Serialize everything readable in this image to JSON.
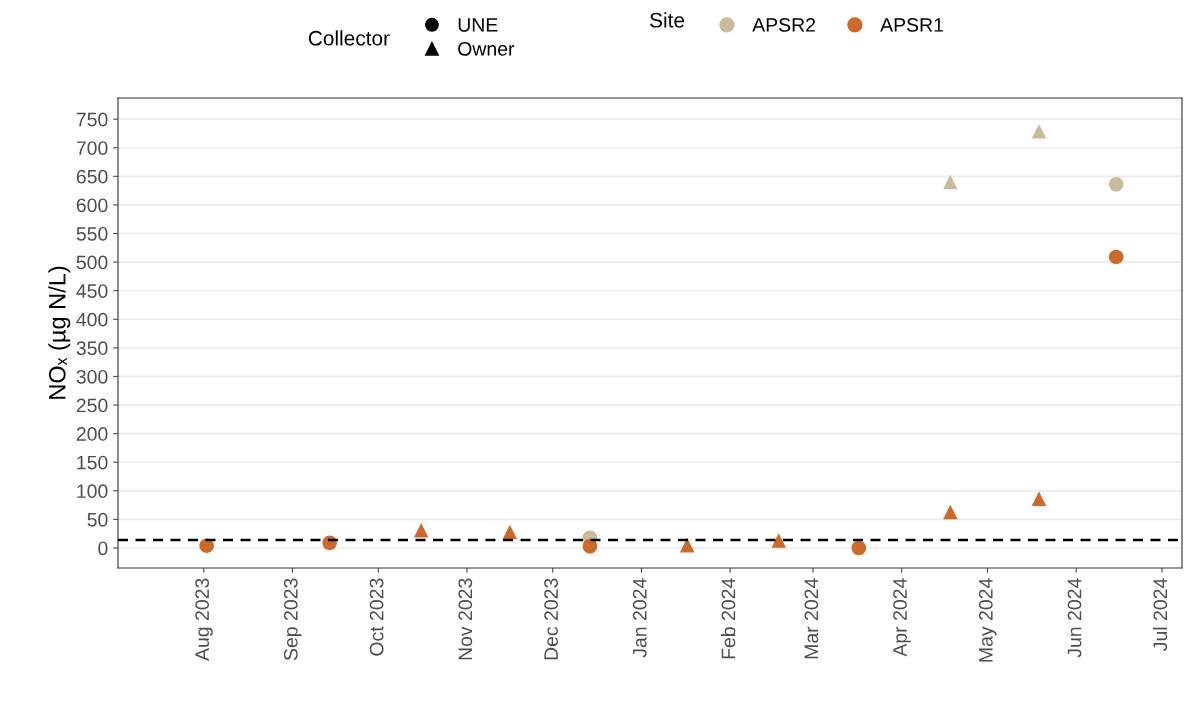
{
  "chart_data": {
    "type": "scatter",
    "ylabel": "NOₓ (µg N/L)",
    "legend_title": "Site",
    "legend": "top",
    "annotations": [
      "Collector",
      "UNE",
      "Owner"
    ],
    "series": [
      {
        "name": "APSR2",
        "color": "#c8bb9b",
        "marker": "circle",
        "x": [
          "2023-12-14",
          "2024-06-15"
        ],
        "values": [
          18,
          636
        ]
      },
      {
        "color": "#c8bb9b",
        "marker": "triangle",
        "x": [
          "2024-04-18",
          "2024-05-19"
        ],
        "values": [
          640,
          729
        ]
      },
      {
        "name": "APSR1",
        "color": "#cc6a2c",
        "marker": "circle",
        "x": [
          "2023-08-02",
          "2023-09-14",
          "2023-12-14",
          "2024-03-17",
          "2024-06-15"
        ],
        "values": [
          4,
          9,
          3,
          0,
          509
        ]
      },
      {
        "color": "#cc6a2c",
        "marker": "triangle",
        "x": [
          "2023-10-16",
          "2023-11-16",
          "2024-01-17",
          "2024-02-18",
          "2024-04-18",
          "2024-05-19"
        ],
        "values": [
          31,
          28,
          5,
          13,
          63,
          86
        ]
      }
    ],
    "xlim": [
      "2023-07-02",
      "2024-07-08"
    ],
    "ylim": [
      -35,
      787
    ],
    "xticks": [
      {
        "value": "2023-08-01",
        "label": "Aug 2023"
      },
      {
        "value": "2023-09-01",
        "label": "Sep 2023"
      },
      {
        "value": "2023-10-01",
        "label": "Oct 2023"
      },
      {
        "value": "2023-11-01",
        "label": "Nov 2023"
      },
      {
        "value": "2023-12-01",
        "label": "Dec 2023"
      },
      {
        "value": "2024-01-01",
        "label": "Jan 2024"
      },
      {
        "value": "2024-02-01",
        "label": "Feb 2024"
      },
      {
        "value": "2024-03-01",
        "label": "Mar 2024"
      },
      {
        "value": "2024-04-01",
        "label": "Apr 2024"
      },
      {
        "value": "2024-05-01",
        "label": "May 2024"
      },
      {
        "value": "2024-06-01",
        "label": "Jun 2024"
      },
      {
        "value": "2024-07-01",
        "label": "Jul 2024"
      }
    ],
    "yticks": [
      0,
      50,
      100,
      150,
      200,
      250,
      300,
      350,
      400,
      450,
      500,
      550,
      600,
      650,
      700,
      750
    ],
    "grid": "y",
    "ref_lines": [
      {
        "axis": "y",
        "value": 14,
        "color": "#000000",
        "line_style": "dashed"
      }
    ]
  }
}
